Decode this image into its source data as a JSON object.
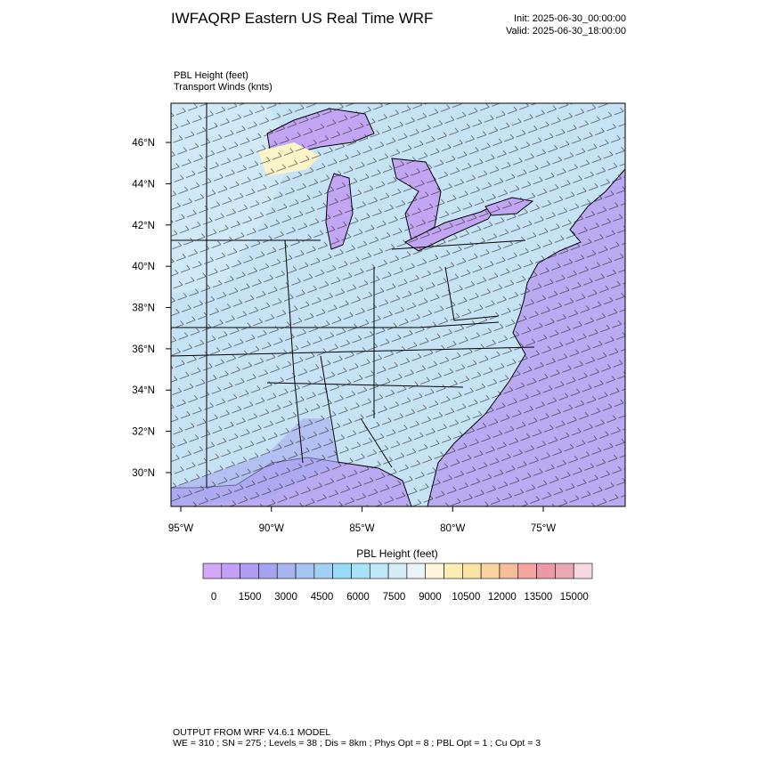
{
  "header": {
    "title": "IWFAQRP Eastern US Real Time WRF",
    "init": "Init: 2025-06-30_00:00:00",
    "valid": "Valid: 2025-06-30_18:00:00"
  },
  "map": {
    "field_label": "PBL Height   (feet)",
    "vector_label": "Transport Winds   (knts)",
    "xlim": [
      -95.54,
      -70.48
    ],
    "ylim": [
      28.36,
      47.9
    ],
    "xticks": [
      {
        "value": -95,
        "label": "95°W"
      },
      {
        "value": -90,
        "label": "90°W"
      },
      {
        "value": -85,
        "label": "85°W"
      },
      {
        "value": -80,
        "label": "80°W"
      },
      {
        "value": -75,
        "label": "75°W"
      }
    ],
    "yticks": [
      {
        "value": 30,
        "label": "30°N"
      },
      {
        "value": 32,
        "label": "32°N"
      },
      {
        "value": 34,
        "label": "34°N"
      },
      {
        "value": 36,
        "label": "36°N"
      },
      {
        "value": 38,
        "label": "38°N"
      },
      {
        "value": 40,
        "label": "40°N"
      },
      {
        "value": 42,
        "label": "42°N"
      },
      {
        "value": 44,
        "label": "44°N"
      },
      {
        "value": 46,
        "label": "46°N"
      }
    ]
  },
  "colorbar": {
    "title": "PBL Height  (feet)",
    "lim": [
      -450,
      15750
    ],
    "ticks": [
      0,
      1500,
      3000,
      4500,
      6000,
      7500,
      9000,
      10500,
      12000,
      13500,
      15000
    ],
    "colors": [
      "#d2a8f7",
      "#c1a0f5",
      "#b09cf2",
      "#a4a4ee",
      "#a8b6ef",
      "#a8c4f0",
      "#a2d0f4",
      "#98dcf7",
      "#a8e2f8",
      "#bfe8f8",
      "#d4eef8",
      "#e8f4f8",
      "#fdf6da",
      "#fcedb4",
      "#fbe3a6",
      "#f9d3a0",
      "#f6bd9c",
      "#f3a5a0",
      "#ea9aa4",
      "#eaa8b4",
      "#f8d8e0"
    ]
  },
  "footer": {
    "line1": "OUTPUT FROM WRF V4.6.1 MODEL",
    "line2": "WE = 310 ; SN = 275 ; Levels = 38 ; Dis = 8km ; Phys Opt = 8 ; PBL Opt = 1 ; Cu Opt = 3"
  }
}
